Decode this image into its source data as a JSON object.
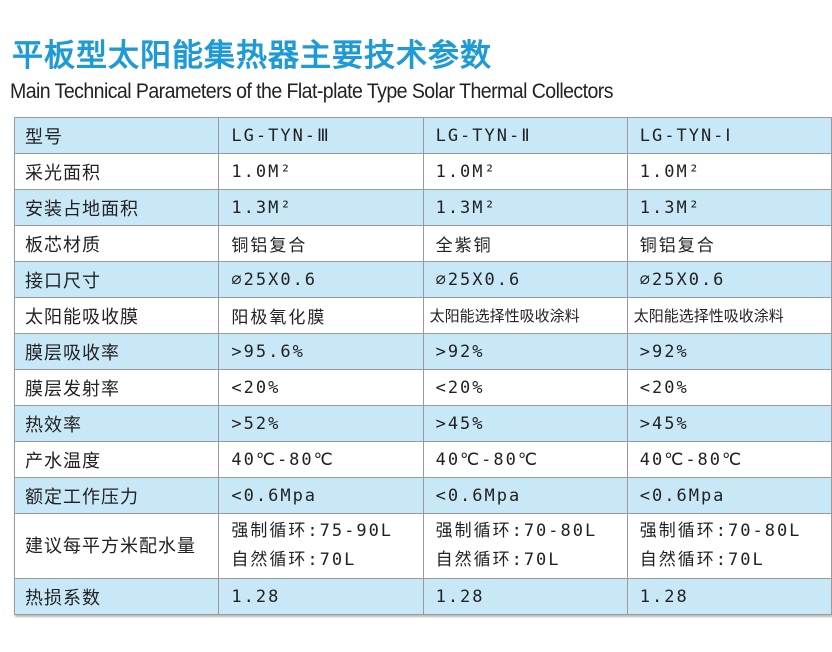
{
  "title": "平板型太阳能集热器主要技术参数",
  "subtitle": "Main Technical Parameters of the Flat-plate Type Solar Thermal Collectors",
  "colors": {
    "title": "#1e9ad6",
    "row_blue": "#c8e8f8",
    "row_white": "#ffffff"
  },
  "table": {
    "header": [
      "型号",
      "LG-TYN-Ⅲ",
      "LG-TYN-Ⅱ",
      "LG-TYN-Ⅰ"
    ],
    "rows": [
      {
        "label": "采光面积",
        "values": [
          "1.0M²",
          "1.0M²",
          "1.0M²"
        ]
      },
      {
        "label": "安装占地面积",
        "values": [
          "1.3M²",
          "1.3M²",
          "1.3M²"
        ]
      },
      {
        "label": "板芯材质",
        "values": [
          "铜铝复合",
          "全紫铜",
          "铜铝复合"
        ]
      },
      {
        "label": "接口尺寸",
        "values": [
          "∅25X0.6",
          "∅25X0.6",
          "∅25X0.6"
        ]
      },
      {
        "label": "太阳能吸收膜",
        "values": [
          "阳极氧化膜",
          "太阳能选择性吸收涂料",
          "太阳能选择性吸收涂料"
        ]
      },
      {
        "label": "膜层吸收率",
        "values": [
          ">95.6%",
          ">92%",
          ">92%"
        ]
      },
      {
        "label": "膜层发射率",
        "values": [
          "<20%",
          "<20%",
          "<20%"
        ]
      },
      {
        "label": "热效率",
        "values": [
          ">52%",
          ">45%",
          ">45%"
        ]
      },
      {
        "label": "产水温度",
        "values": [
          "40℃-80℃",
          "40℃-80℃",
          "40℃-80℃"
        ]
      },
      {
        "label": "额定工作压力",
        "values": [
          "<0.6Mpa",
          "<0.6Mpa",
          "<0.6Mpa"
        ]
      },
      {
        "label": "建议每平方米配水量",
        "values": [
          [
            "强制循环:75-90L",
            "自然循环:70L"
          ],
          [
            "强制循环:70-80L",
            "自然循环:70L"
          ],
          [
            "强制循环:70-80L",
            "自然循环:70L"
          ]
        ]
      },
      {
        "label": "热损系数",
        "values": [
          "1.28",
          "1.28",
          "1.28"
        ]
      }
    ]
  }
}
